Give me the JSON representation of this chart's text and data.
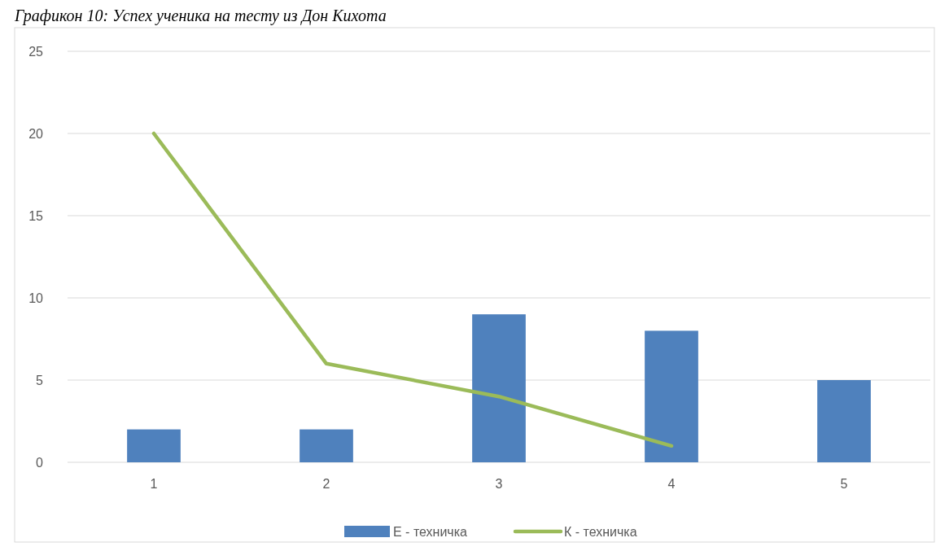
{
  "chart_data": {
    "type": "bar",
    "title": "Графикон 10: Успех ученика на тесту из Дон Кихота",
    "categories": [
      "1",
      "2",
      "3",
      "4",
      "5"
    ],
    "series": [
      {
        "name": "Е - техничка",
        "color": "#4f81bd",
        "values": [
          2,
          2,
          9,
          8,
          5
        ]
      },
      {
        "name": "К - техничка",
        "type": "line",
        "color": "#9bbb59",
        "values": [
          20,
          6,
          4,
          1,
          null
        ]
      }
    ],
    "ylim": [
      0,
      25
    ],
    "yticks": [
      0,
      5,
      10,
      15,
      20,
      25
    ],
    "grid": "y",
    "legend": "bottom",
    "marker": "none",
    "line_style": "solid"
  }
}
